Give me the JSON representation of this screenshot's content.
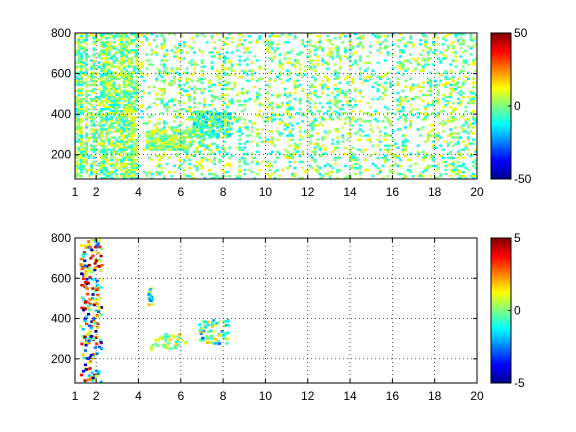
{
  "chart_data": [
    {
      "type": "heatmap",
      "x_range": [
        1,
        20
      ],
      "y_range": [
        80,
        800
      ],
      "x_ticks": [
        1,
        2,
        4,
        6,
        8,
        10,
        12,
        14,
        16,
        18,
        20
      ],
      "y_ticks": [
        200,
        400,
        600,
        800
      ],
      "x_tick_labels": [
        "1",
        "2",
        "4",
        "6",
        "8",
        "10",
        "12",
        "14",
        "16",
        "18",
        "20"
      ],
      "y_tick_labels": [
        "200",
        "400",
        "600",
        "800"
      ],
      "grid": true,
      "colormap": "jet",
      "colorbar": {
        "range": [
          -50,
          50
        ],
        "ticks": [
          -50,
          0,
          50
        ],
        "tick_labels": [
          "-50",
          "0",
          "50"
        ]
      },
      "density": "dense",
      "clusters": [
        {
          "x": [
            4.3,
            6.5
          ],
          "y": [
            230,
            330
          ],
          "values": [
            -10,
            15
          ]
        },
        {
          "x": [
            6.5,
            8.3
          ],
          "y": [
            290,
            420
          ],
          "values": [
            -20,
            10
          ]
        }
      ],
      "title": "",
      "xlabel": "",
      "ylabel": ""
    },
    {
      "type": "heatmap",
      "x_range": [
        1,
        20
      ],
      "y_range": [
        80,
        800
      ],
      "x_ticks": [
        1,
        2,
        4,
        6,
        8,
        10,
        12,
        14,
        16,
        18,
        20
      ],
      "y_ticks": [
        200,
        400,
        600,
        800
      ],
      "x_tick_labels": [
        "1",
        "2",
        "4",
        "6",
        "8",
        "10",
        "12",
        "14",
        "16",
        "18",
        "20"
      ],
      "y_tick_labels": [
        "200",
        "400",
        "600",
        "800"
      ],
      "grid": true,
      "colormap": "jet",
      "colorbar": {
        "range": [
          -5,
          5
        ],
        "ticks": [
          -5,
          0,
          5
        ],
        "tick_labels": [
          "-5",
          "0",
          "5"
        ]
      },
      "density": "sparse",
      "clusters": [
        {
          "x": [
            4.5,
            6.2
          ],
          "y": [
            250,
            330
          ],
          "values": [
            -1,
            2
          ]
        },
        {
          "x": [
            6.8,
            8.2
          ],
          "y": [
            280,
            400
          ],
          "values": [
            -3,
            2
          ]
        },
        {
          "x": [
            4.4,
            4.6
          ],
          "y": [
            460,
            560
          ],
          "values": [
            -3,
            3
          ]
        },
        {
          "x": [
            1.2,
            2.2
          ],
          "y": [
            90,
            800
          ],
          "values": [
            -5,
            5
          ]
        }
      ],
      "title": "",
      "xlabel": "",
      "ylabel": ""
    }
  ]
}
